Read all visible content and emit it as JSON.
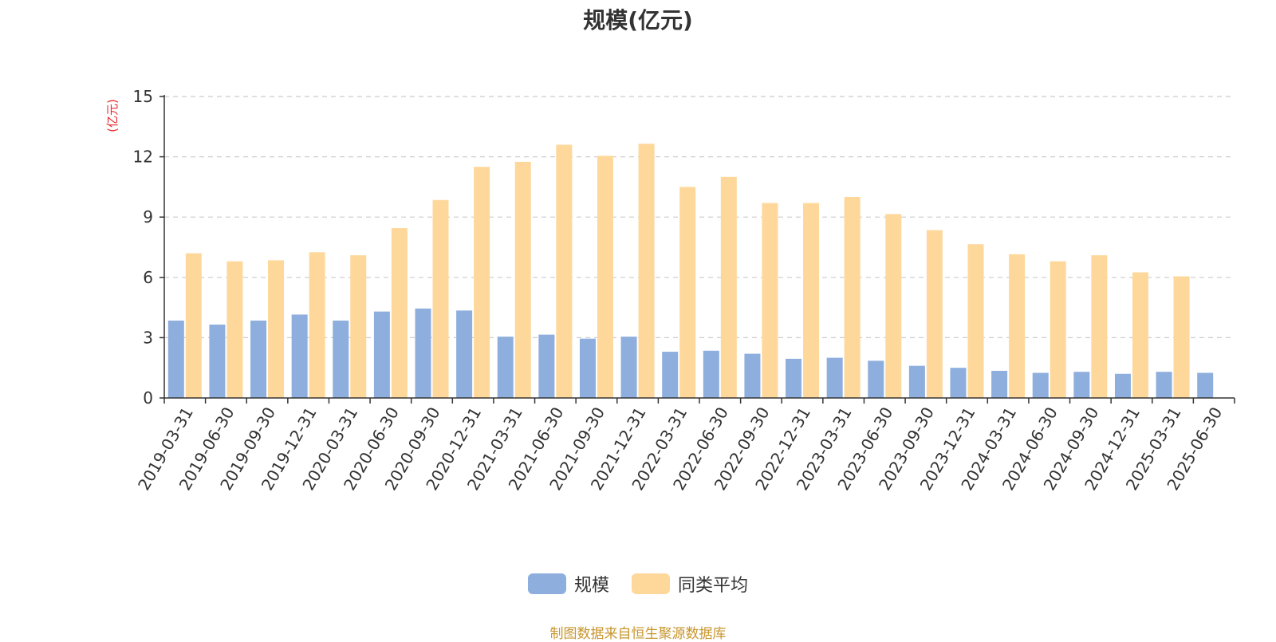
{
  "chart_data": {
    "type": "bar",
    "title": "规模(亿元)",
    "ylabel": "(亿元)",
    "ylim": [
      0,
      15
    ],
    "yticks": [
      "0",
      "3",
      "6",
      "9",
      "12",
      "15"
    ],
    "grid": true,
    "legend_position": "bottom",
    "categories": [
      "2019-03-31",
      "2019-06-30",
      "2019-09-30",
      "2019-12-31",
      "2020-03-31",
      "2020-06-30",
      "2020-09-30",
      "2020-12-31",
      "2021-03-31",
      "2021-06-30",
      "2021-09-30",
      "2021-12-31",
      "2022-03-31",
      "2022-06-30",
      "2022-09-30",
      "2022-12-31",
      "2023-03-31",
      "2023-06-30",
      "2023-09-30",
      "2023-12-31",
      "2024-03-31",
      "2024-06-30",
      "2024-09-30",
      "2024-12-31",
      "2025-03-31",
      "2025-06-30"
    ],
    "series": [
      {
        "name": "规模",
        "color": "#8eaedd",
        "values": [
          3.85,
          3.65,
          3.85,
          4.15,
          3.85,
          4.3,
          4.45,
          4.35,
          3.05,
          3.15,
          2.95,
          3.05,
          2.3,
          2.35,
          2.2,
          1.95,
          2.0,
          1.85,
          1.6,
          1.5,
          1.35,
          1.25,
          1.3,
          1.2,
          1.3,
          1.25
        ]
      },
      {
        "name": "同类平均",
        "color": "#fed89b",
        "values": [
          7.2,
          6.8,
          6.85,
          7.25,
          7.1,
          8.45,
          9.85,
          11.5,
          11.75,
          12.6,
          12.05,
          12.65,
          10.5,
          11.0,
          9.7,
          9.7,
          10.0,
          9.15,
          8.35,
          7.65,
          7.15,
          6.8,
          7.1,
          6.25,
          6.05,
          null
        ]
      }
    ]
  },
  "source_note": "制图数据来自恒生聚源数据库"
}
